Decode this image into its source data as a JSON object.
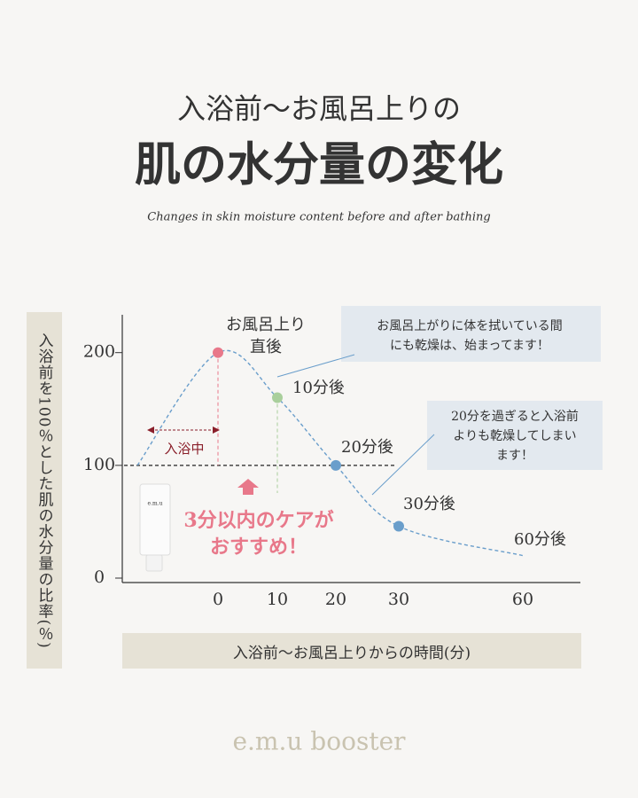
{
  "title_line1": "入浴前〜お風呂上りの",
  "title": "肌の水分量の変化",
  "subtitle": "Changes in skin moisture content before and after bathing",
  "footer": "e.m.u booster",
  "chart_data": {
    "type": "line",
    "ylabel": "入浴前を100％とした肌の水分量の比率(％)",
    "xlabel": "入浴前〜お風呂上りからの時間(分)",
    "categories": [
      null,
      "0",
      "10",
      "20",
      "30",
      "60"
    ],
    "values": [
      100,
      200,
      160,
      100,
      46,
      20
    ],
    "color": "#6a9ecb",
    "marker_colors": [
      null,
      "#e8788a",
      "#a9cf9c",
      "#6a9ecb",
      "#6a9ecb",
      null
    ],
    "point_labels": [
      null,
      [
        "お風呂上り",
        "直後"
      ],
      "10分後",
      "20分後",
      "30分後",
      "60分後"
    ],
    "ylim": [
      0,
      232
    ],
    "yticks": [
      0,
      100,
      200
    ],
    "reference_value": 100,
    "in_bath_label": "入浴中",
    "care_note": [
      "3分以内のケアが",
      "おすすめ！"
    ],
    "product_label": "e.m.u",
    "callouts": [
      [
        "お風呂上がりに体を拭いている間",
        "にも乾燥は、始まってます！"
      ],
      [
        "20分を過ぎると入浴前",
        "よりも乾燥してしまい",
        "ます！"
      ]
    ]
  }
}
